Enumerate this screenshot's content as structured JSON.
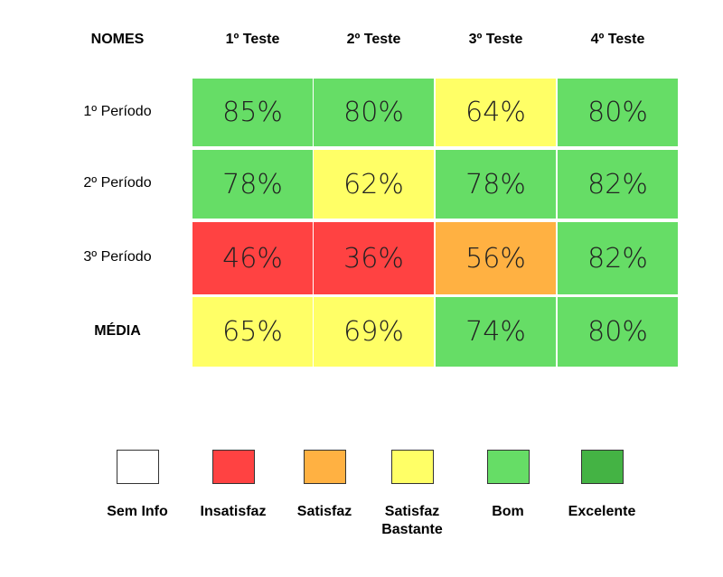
{
  "chart_data": {
    "type": "heatmap",
    "corner_label": "NOMES",
    "columns": [
      "1º Teste",
      "2º Teste",
      "3º Teste",
      "4º Teste"
    ],
    "rows": [
      "1º Período",
      "2º Período",
      "3º Período",
      "MÉDIA"
    ],
    "values": [
      [
        85,
        80,
        64,
        80
      ],
      [
        78,
        62,
        78,
        82
      ],
      [
        46,
        36,
        56,
        82
      ],
      [
        65,
        69,
        74,
        80
      ]
    ],
    "cell_labels": [
      [
        "85%",
        "80%",
        "64%",
        "80%"
      ],
      [
        "78%",
        "62%",
        "78%",
        "82%"
      ],
      [
        "46%",
        "36%",
        "56%",
        "82%"
      ],
      [
        "65%",
        "69%",
        "74%",
        "80%"
      ]
    ],
    "categories_per_cell": [
      [
        "Bom",
        "Bom",
        "Satisfaz Bastante",
        "Bom"
      ],
      [
        "Bom",
        "Satisfaz Bastante",
        "Bom",
        "Bom"
      ],
      [
        "Insatisfaz",
        "Insatisfaz",
        "Satisfaz",
        "Bom"
      ],
      [
        "Satisfaz Bastante",
        "Satisfaz Bastante",
        "Bom",
        "Bom"
      ]
    ],
    "legend": [
      {
        "label": "Sem Info",
        "color": "#ffffff"
      },
      {
        "label": "Insatisfaz",
        "color": "#ff4242"
      },
      {
        "label": "Satisfaz",
        "color": "#ffb142"
      },
      {
        "label": "Satisfaz Bastante",
        "color": "#ffff66"
      },
      {
        "label": "Bom",
        "color": "#66dd66"
      },
      {
        "label": "Excelente",
        "color": "#44b344"
      }
    ]
  }
}
